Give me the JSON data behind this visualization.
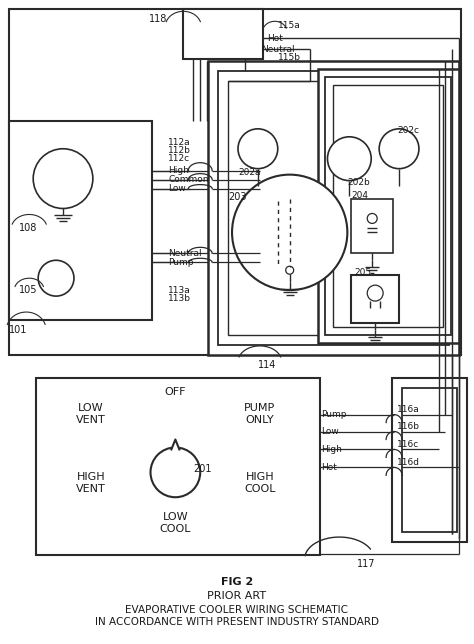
{
  "title_lines": [
    "FIG 2",
    "PRIOR ART",
    "EVAPORATIVE COOLER WIRING SCHEMATIC",
    "IN ACCORDANCE WITH PRESENT INDUSTRY STANDARD"
  ],
  "bg_color": "#ffffff",
  "line_color": "#2a2a2a",
  "font_color": "#1a1a1a",
  "figsize": [
    4.74,
    6.44
  ],
  "dpi": 100
}
